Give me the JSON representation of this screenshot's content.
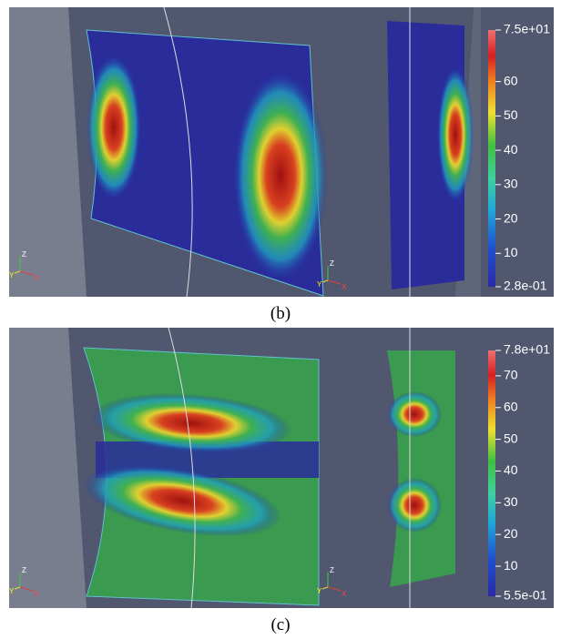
{
  "panels": [
    {
      "caption": "(b)",
      "colorbar": {
        "range": [
          0.28,
          75
        ],
        "ticks": [
          {
            "value": 75,
            "label": "7.5e+01"
          },
          60,
          50,
          40,
          30,
          20,
          10,
          {
            "value": 0.28,
            "label": "2.8e-01"
          }
        ]
      },
      "triads": [
        {
          "z": "Z",
          "y": "Y",
          "x": "X"
        },
        {
          "z": "Z",
          "y": "Y",
          "x": "X"
        }
      ]
    },
    {
      "caption": "(c)",
      "colorbar": {
        "range": [
          0.55,
          78
        ],
        "ticks": [
          {
            "value": 78,
            "label": "7.8e+01"
          },
          70,
          60,
          50,
          40,
          30,
          20,
          10,
          {
            "value": 0.55,
            "label": "5.5e-01"
          }
        ]
      },
      "triads": [
        {
          "z": "Z",
          "y": "Y",
          "x": "X"
        },
        {
          "z": "Z",
          "y": "Y",
          "x": "X"
        }
      ]
    }
  ]
}
